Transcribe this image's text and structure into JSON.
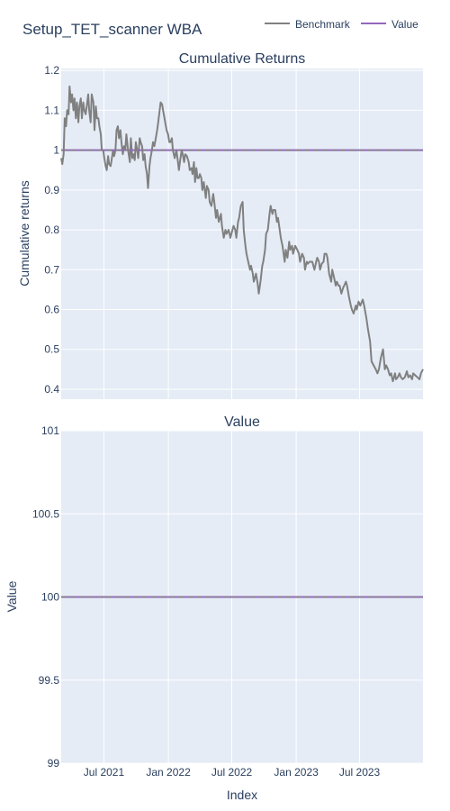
{
  "page": {
    "title": "Setup_TET_scanner WBA"
  },
  "legend": {
    "placement": "top-right",
    "items": [
      {
        "label": "Benchmark",
        "color": "#808080"
      },
      {
        "label": "Value",
        "color": "#9467bd"
      }
    ]
  },
  "colors": {
    "plot_bg": "#e5ecf6",
    "grid": "#ffffff",
    "text": "#2a3f5f",
    "benchmark": "#808080",
    "value": "#9467bd",
    "reference": "#808080"
  },
  "chart_data": [
    {
      "type": "line",
      "title": "Cumulative Returns",
      "xlabel": "",
      "ylabel": "Cumulative returns",
      "ylim": [
        0.375,
        1.205
      ],
      "yticks": [
        1.2,
        1.1,
        1,
        0.9,
        0.8,
        0.7,
        0.6,
        0.5,
        0.4
      ],
      "ytick_labels": [
        "1.2",
        "1.1",
        "1",
        "0.9",
        "0.8",
        "0.7",
        "0.6",
        "0.5",
        "0.4"
      ],
      "xlim": [
        "2021-03-01",
        "2023-12-29"
      ],
      "xticks": [
        "2021-07-01",
        "2022-01-01",
        "2022-07-01",
        "2023-01-01",
        "2023-07-01"
      ],
      "xtick_labels": [
        "Jul 2021",
        "Jan 2022",
        "Jul 2022",
        "Jan 2023",
        "Jul 2023"
      ],
      "show_xtick_labels": false,
      "grid": true,
      "reference_line": {
        "y": 1,
        "style": "dashed"
      },
      "series": [
        {
          "name": "Benchmark",
          "x": [
            "2021-03-01",
            "2021-03-04",
            "2021-03-08",
            "2021-03-11",
            "2021-03-15",
            "2021-03-18",
            "2021-03-22",
            "2021-03-25",
            "2021-03-29",
            "2021-04-01",
            "2021-04-05",
            "2021-04-08",
            "2021-04-12",
            "2021-04-15",
            "2021-04-19",
            "2021-04-22",
            "2021-04-26",
            "2021-04-29",
            "2021-05-03",
            "2021-05-06",
            "2021-05-10",
            "2021-05-13",
            "2021-05-17",
            "2021-05-20",
            "2021-05-24",
            "2021-05-27",
            "2021-06-01",
            "2021-06-04",
            "2021-06-08",
            "2021-06-11",
            "2021-06-15",
            "2021-06-18",
            "2021-06-22",
            "2021-06-25",
            "2021-06-29",
            "2021-07-02",
            "2021-07-06",
            "2021-07-09",
            "2021-07-13",
            "2021-07-16",
            "2021-07-20",
            "2021-07-23",
            "2021-07-27",
            "2021-07-30",
            "2021-08-03",
            "2021-08-06",
            "2021-08-10",
            "2021-08-13",
            "2021-08-17",
            "2021-08-20",
            "2021-08-24",
            "2021-08-27",
            "2021-08-31",
            "2021-09-03",
            "2021-09-08",
            "2021-09-13",
            "2021-09-16",
            "2021-09-20",
            "2021-09-23",
            "2021-09-27",
            "2021-09-30",
            "2021-10-04",
            "2021-10-07",
            "2021-10-11",
            "2021-10-14",
            "2021-10-18",
            "2021-10-21",
            "2021-10-25",
            "2021-10-28",
            "2021-11-01",
            "2021-11-04",
            "2021-11-08",
            "2021-11-11",
            "2021-11-15",
            "2021-11-18",
            "2021-11-22",
            "2021-11-26",
            "2021-11-30",
            "2021-12-03",
            "2021-12-07",
            "2021-12-10",
            "2021-12-14",
            "2021-12-17",
            "2021-12-21",
            "2021-12-27",
            "2021-12-31",
            "2022-01-04",
            "2022-01-07",
            "2022-01-11",
            "2022-01-14",
            "2022-01-19",
            "2022-01-24",
            "2022-01-27",
            "2022-01-31",
            "2022-02-03",
            "2022-02-08",
            "2022-02-11",
            "2022-02-15",
            "2022-02-18",
            "2022-02-23",
            "2022-02-28",
            "2022-03-03",
            "2022-03-08",
            "2022-03-11",
            "2022-03-15",
            "2022-03-18",
            "2022-03-22",
            "2022-03-25",
            "2022-03-29",
            "2022-04-01",
            "2022-04-05",
            "2022-04-08",
            "2022-04-12",
            "2022-04-18",
            "2022-04-21",
            "2022-04-26",
            "2022-04-29",
            "2022-05-04",
            "2022-05-09",
            "2022-05-12",
            "2022-05-17",
            "2022-05-20",
            "2022-05-25",
            "2022-05-31",
            "2022-06-03",
            "2022-06-08",
            "2022-06-13",
            "2022-06-16",
            "2022-06-22",
            "2022-06-27",
            "2022-06-30",
            "2022-07-06",
            "2022-07-11",
            "2022-07-14",
            "2022-07-19",
            "2022-07-22",
            "2022-07-27",
            "2022-08-01",
            "2022-08-04",
            "2022-08-09",
            "2022-08-12",
            "2022-08-17",
            "2022-08-22",
            "2022-08-25",
            "2022-08-30",
            "2022-09-02",
            "2022-09-08",
            "2022-09-13",
            "2022-09-16",
            "2022-09-21",
            "2022-09-26",
            "2022-09-29",
            "2022-10-04",
            "2022-10-07",
            "2022-10-12",
            "2022-10-17",
            "2022-10-20",
            "2022-10-25",
            "2022-10-28",
            "2022-11-02",
            "2022-11-07",
            "2022-11-10",
            "2022-11-15",
            "2022-11-18",
            "2022-11-23",
            "2022-11-29",
            "2022-12-02",
            "2022-12-07",
            "2022-12-12",
            "2022-12-15",
            "2022-12-20",
            "2022-12-23",
            "2022-12-29",
            "2023-01-04",
            "2023-01-09",
            "2023-01-12",
            "2023-01-18",
            "2023-01-23",
            "2023-01-26",
            "2023-01-31",
            "2023-02-03",
            "2023-02-08",
            "2023-02-13",
            "2023-02-16",
            "2023-02-22",
            "2023-02-27",
            "2023-03-02",
            "2023-03-07",
            "2023-03-10",
            "2023-03-15",
            "2023-03-20",
            "2023-03-23",
            "2023-03-28",
            "2023-03-31",
            "2023-04-05",
            "2023-04-11",
            "2023-04-14",
            "2023-04-19",
            "2023-04-24",
            "2023-04-27",
            "2023-05-02",
            "2023-05-05",
            "2023-05-10",
            "2023-05-15",
            "2023-05-18",
            "2023-05-23",
            "2023-05-26",
            "2023-06-01",
            "2023-06-06",
            "2023-06-09",
            "2023-06-14",
            "2023-06-20",
            "2023-06-23",
            "2023-06-28",
            "2023-07-03",
            "2023-07-10",
            "2023-07-14",
            "2023-07-20",
            "2023-07-25",
            "2023-07-31",
            "2023-08-04",
            "2023-08-10",
            "2023-08-16",
            "2023-08-21",
            "2023-08-25",
            "2023-08-31",
            "2023-09-06",
            "2023-09-11",
            "2023-09-15",
            "2023-09-20",
            "2023-09-25",
            "2023-09-29",
            "2023-10-04",
            "2023-10-10",
            "2023-10-13",
            "2023-10-18",
            "2023-10-23",
            "2023-10-27",
            "2023-11-01",
            "2023-11-07",
            "2023-11-13",
            "2023-11-17",
            "2023-11-22",
            "2023-11-28",
            "2023-12-01",
            "2023-12-07",
            "2023-12-13",
            "2023-12-19",
            "2023-12-23",
            "2023-12-29"
          ],
          "y": [
            0.98,
            0.965,
            0.99,
            1.08,
            1.06,
            1.1,
            1.09,
            1.16,
            1.12,
            1.14,
            1.1,
            1.13,
            1.08,
            1.12,
            1.07,
            1.11,
            1.13,
            1.08,
            1.12,
            1.1,
            1.09,
            1.11,
            1.14,
            1.1,
            1.07,
            1.14,
            1.12,
            1.05,
            1.11,
            1.08,
            1.08,
            1.06,
            1.04,
            1,
            1.0,
            0.98,
            0.96,
            0.95,
            0.985,
            0.965,
            0.96,
            0.975,
            1.0,
            0.985,
            1.0,
            1.05,
            1.06,
            1.03,
            1.05,
            1.02,
            0.99,
            1.01,
            1.0,
            1.04,
            1.0,
            0.97,
            1.03,
            0.98,
            0.99,
            0.975,
            1.02,
            1.0,
            0.98,
            1.03,
            1.02,
            1.01,
            0.975,
            0.99,
            0.96,
            0.94,
            0.905,
            0.96,
            0.98,
            1.0,
            1.02,
            1.01,
            1.03,
            1.05,
            1.07,
            1.1,
            1.12,
            1.115,
            1.1,
            1.08,
            1.05,
            1.04,
            1.02,
            1.02,
            1.03,
            1.0,
            0.98,
            1.0,
            0.98,
            0.95,
            0.97,
            1.0,
            0.99,
            0.97,
            0.99,
            0.985,
            0.97,
            0.95,
            0.955,
            0.94,
            0.97,
            0.92,
            0.955,
            0.93,
            0.93,
            0.94,
            0.93,
            0.9,
            0.92,
            0.88,
            0.91,
            0.9,
            0.87,
            0.86,
            0.89,
            0.87,
            0.83,
            0.85,
            0.82,
            0.84,
            0.81,
            0.78,
            0.8,
            0.79,
            0.8,
            0.78,
            0.79,
            0.81,
            0.8,
            0.78,
            0.82,
            0.83,
            0.86,
            0.87,
            0.8,
            0.76,
            0.74,
            0.72,
            0.7,
            0.71,
            0.69,
            0.67,
            0.69,
            0.665,
            0.64,
            0.67,
            0.71,
            0.72,
            0.75,
            0.79,
            0.8,
            0.84,
            0.86,
            0.84,
            0.85,
            0.85,
            0.82,
            0.83,
            0.8,
            0.78,
            0.76,
            0.72,
            0.75,
            0.73,
            0.77,
            0.75,
            0.76,
            0.74,
            0.76,
            0.75,
            0.74,
            0.72,
            0.74,
            0.73,
            0.7,
            0.72,
            0.715,
            0.72,
            0.72,
            0.72,
            0.7,
            0.72,
            0.73,
            0.72,
            0.7,
            0.715,
            0.72,
            0.74,
            0.74,
            0.73,
            0.69,
            0.67,
            0.7,
            0.68,
            0.66,
            0.67,
            0.66,
            0.66,
            0.64,
            0.655,
            0.66,
            0.67,
            0.66,
            0.63,
            0.61,
            0.6,
            0.59,
            0.61,
            0.6,
            0.62,
            0.61,
            0.625,
            0.61,
            0.58,
            0.55,
            0.52,
            0.47,
            0.46,
            0.45,
            0.44,
            0.45,
            0.48,
            0.5,
            0.45,
            0.46,
            0.45,
            0.435,
            0.44,
            0.42,
            0.44,
            0.425,
            0.43,
            0.44,
            0.43,
            0.425,
            0.43,
            0.445,
            0.43,
            0.435,
            0.425,
            0.44,
            0.435,
            0.43,
            0.425,
            0.44,
            0.45
          ]
        },
        {
          "name": "Value",
          "x": [
            "2021-03-01",
            "2023-12-29"
          ],
          "y": [
            1,
            1
          ]
        }
      ]
    },
    {
      "type": "line",
      "title": "Value",
      "xlabel": "Index",
      "ylabel": "Value",
      "ylim": [
        99,
        101
      ],
      "yticks": [
        101,
        100.5,
        100,
        99.5,
        99
      ],
      "ytick_labels": [
        "101",
        "100.5",
        "100",
        "99.5",
        "99"
      ],
      "xlim": [
        "2021-03-01",
        "2023-12-29"
      ],
      "xticks": [
        "2021-07-01",
        "2022-01-01",
        "2022-07-01",
        "2023-01-01",
        "2023-07-01"
      ],
      "xtick_labels": [
        "Jul 2021",
        "Jan 2022",
        "Jul 2022",
        "Jan 2023",
        "Jul 2023"
      ],
      "show_xtick_labels": true,
      "grid": true,
      "reference_line": {
        "y": 100,
        "style": "dashed"
      },
      "series": [
        {
          "name": "Value",
          "x": [
            "2021-03-01",
            "2023-12-29"
          ],
          "y": [
            100,
            100
          ]
        }
      ]
    }
  ]
}
